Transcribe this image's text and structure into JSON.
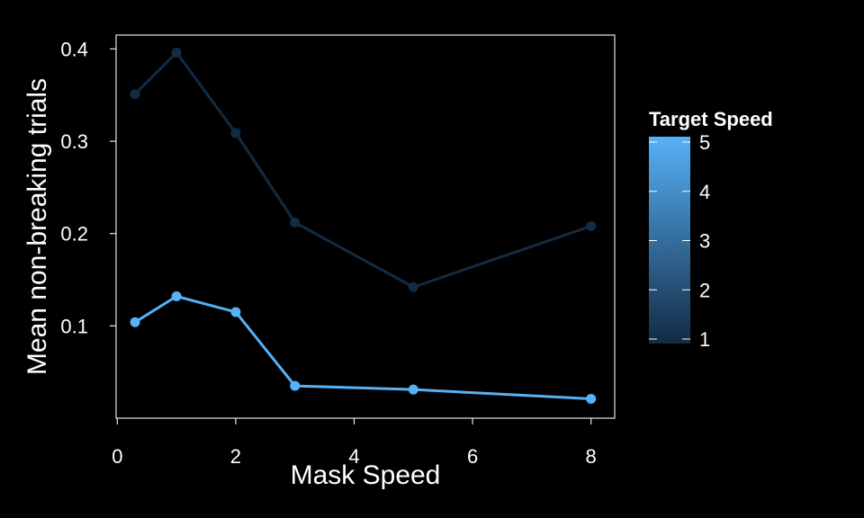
{
  "chart_data": {
    "type": "line",
    "title": "",
    "xlabel": "Mask Speed",
    "ylabel": "Mean non-breaking trials",
    "xlim": [
      -0.02,
      8.4
    ],
    "ylim": [
      0.0,
      0.415
    ],
    "x_ticks": [
      0,
      2,
      4,
      6,
      8
    ],
    "y_ticks": [
      0.1,
      0.2,
      0.3,
      0.4
    ],
    "x_tick_labels": [
      "0",
      "2",
      "4",
      "6",
      "8"
    ],
    "y_tick_labels": [
      "0.1",
      "0.2",
      "0.3",
      "0.4"
    ],
    "grid": false,
    "legend": {
      "title": "Target Speed",
      "type": "colorbar",
      "placement": "right",
      "min": 1,
      "max": 5,
      "ticks": [
        1,
        2,
        3,
        4,
        5
      ],
      "tick_labels": [
        "1",
        "2",
        "3",
        "4",
        "5"
      ],
      "color_low": "#132B43",
      "color_high": "#56B1F7"
    },
    "series": [
      {
        "target_speed": 1,
        "color": "#132B43",
        "x": [
          0.3,
          1,
          2,
          3,
          5,
          8
        ],
        "y": [
          0.351,
          0.396,
          0.309,
          0.212,
          0.142,
          0.208
        ]
      },
      {
        "target_speed": 5,
        "color": "#56B1F7",
        "x": [
          0.3,
          1,
          2,
          3,
          5,
          8
        ],
        "y": [
          0.104,
          0.132,
          0.115,
          0.035,
          0.031,
          0.021
        ]
      }
    ]
  }
}
